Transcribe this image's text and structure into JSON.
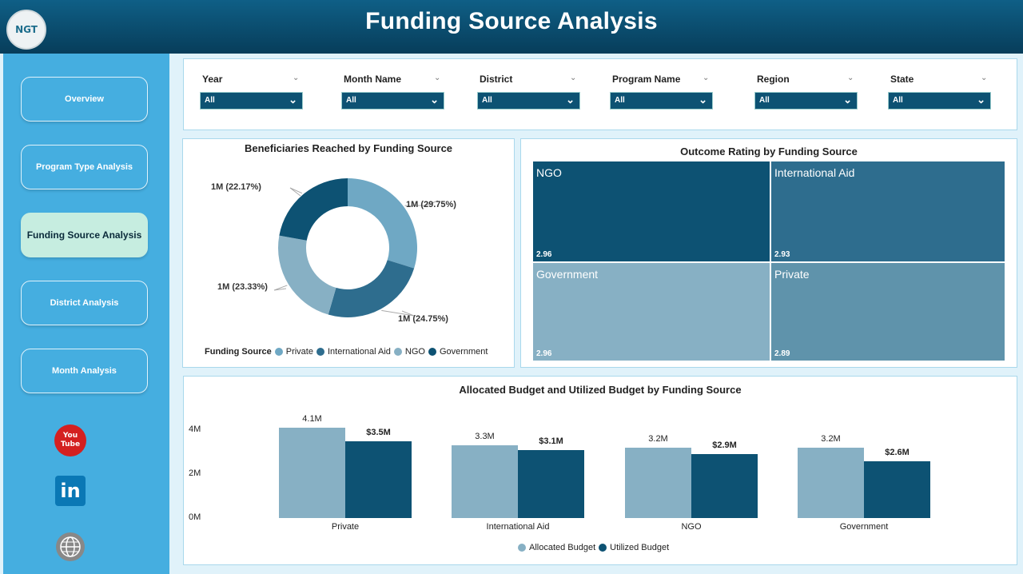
{
  "header": {
    "title": "Funding Source Analysis",
    "logo_text": "NGT"
  },
  "sidebar": {
    "items": [
      {
        "label": "Overview"
      },
      {
        "label": "Program Type Analysis"
      },
      {
        "label": "Funding Source Analysis",
        "active": true
      },
      {
        "label": "District Analysis"
      },
      {
        "label": "Month Analysis"
      }
    ],
    "social": [
      "youtube-icon",
      "linkedin-icon",
      "website-icon"
    ],
    "youtube_text": "You Tube",
    "linkedin_text": "in"
  },
  "filters": [
    {
      "label": "Year",
      "value": "All"
    },
    {
      "label": "Month Name",
      "value": "All"
    },
    {
      "label": "District",
      "value": "All"
    },
    {
      "label": "Program Name",
      "value": "All"
    },
    {
      "label": "Region",
      "value": "All"
    },
    {
      "label": "State",
      "value": "All"
    }
  ],
  "colors": {
    "private": "#6fa8c4",
    "international_aid": "#2e6d8e",
    "ngo": "#87b0c4",
    "government": "#0d5273",
    "allocated": "#87b0c4",
    "utilized": "#0d5273"
  },
  "chart_data": [
    {
      "type": "pie",
      "title": "Beneficiaries Reached by Funding Source",
      "legend_title": "Funding Source",
      "legend_position": "bottom",
      "slices": [
        {
          "name": "Private",
          "percent": 29.75,
          "label": "1M (29.75%)"
        },
        {
          "name": "International Aid",
          "percent": 24.75,
          "label": "1M (24.75%)"
        },
        {
          "name": "NGO",
          "percent": 23.33,
          "label": "1M (23.33%)"
        },
        {
          "name": "Government",
          "percent": 22.17,
          "label": "1M (22.17%)"
        }
      ]
    },
    {
      "type": "heatmap",
      "subtype": "treemap",
      "title": "Outcome Rating by Funding Source",
      "cells": [
        {
          "name": "NGO",
          "value": "2.96"
        },
        {
          "name": "International Aid",
          "value": "2.93"
        },
        {
          "name": "Government",
          "value": "2.96"
        },
        {
          "name": "Private",
          "value": "2.89"
        }
      ]
    },
    {
      "type": "bar",
      "title": "Allocated Budget and Utilized Budget by Funding Source",
      "categories": [
        "Private",
        "International Aid",
        "NGO",
        "Government"
      ],
      "series": [
        {
          "name": "Allocated Budget",
          "values": [
            4.1,
            3.3,
            3.2,
            3.2
          ],
          "labels": [
            "4.1M",
            "3.3M",
            "3.2M",
            "3.2M"
          ]
        },
        {
          "name": "Utilized Budget",
          "values": [
            3.5,
            3.1,
            2.9,
            2.6
          ],
          "labels": [
            "$3.5M",
            "$3.1M",
            "$2.9M",
            "$2.6M"
          ]
        }
      ],
      "yticks": [
        "0M",
        "2M",
        "4M"
      ],
      "ylim": [
        0,
        4.5
      ],
      "legend_position": "bottom"
    }
  ]
}
